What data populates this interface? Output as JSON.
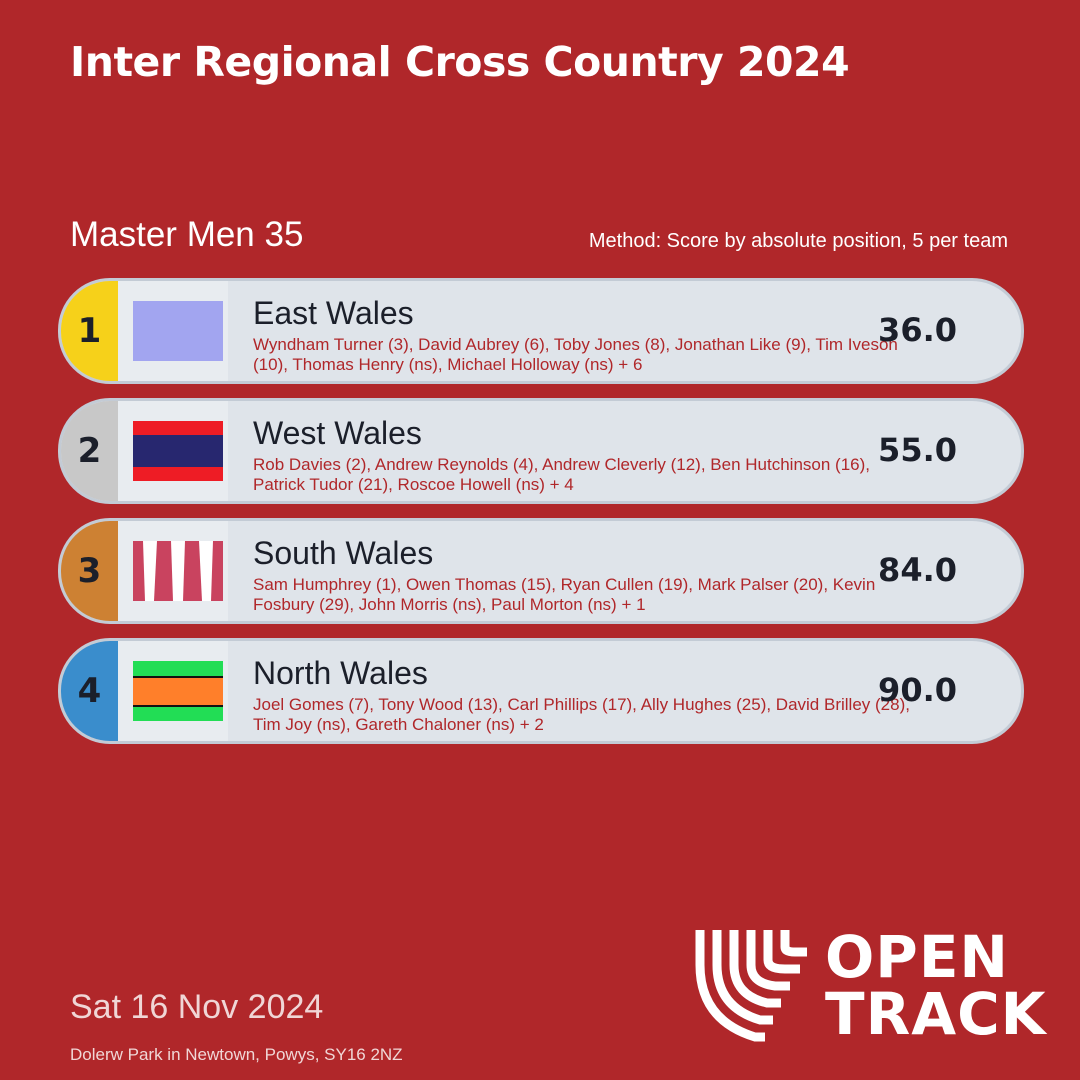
{
  "header": {
    "title": "Inter Regional Cross Country 2024"
  },
  "race": {
    "category": "Master Men 35",
    "method": "Method: Score by absolute position, 5 per team"
  },
  "teams": [
    {
      "rank": 1,
      "name": "East Wales",
      "members": "Wyndham Turner (3), David Aubrey (6), Toby Jones (8), Jonathan Like (9), Tim Iveson (10), Thomas Henry (ns), Michael Holloway (ns) + 6",
      "score": "36.0"
    },
    {
      "rank": 2,
      "name": "West Wales",
      "members": "Rob Davies (2), Andrew Reynolds (4), Andrew Cleverly (12), Ben Hutchinson (16), Patrick Tudor (21), Roscoe Howell (ns) + 4",
      "score": "55.0"
    },
    {
      "rank": 3,
      "name": "South Wales",
      "members": "Sam Humphrey (1), Owen Thomas (15), Ryan Cullen (19), Mark Palser (20), Kevin Fosbury (29), John Morris (ns), Paul Morton (ns) + 1",
      "score": "84.0"
    },
    {
      "rank": 4,
      "name": "North Wales",
      "members": "Joel Gomes (7), Tony Wood (13), Carl Phillips (17), Ally Hughes (25), David Brilley (28), Tim Joy (ns), Gareth Chaloner (ns) + 2",
      "score": "90.0"
    }
  ],
  "footer": {
    "date": "Sat 16 Nov 2024",
    "venue": "Dolerw Park in Newtown, Powys, SY16 2NZ"
  },
  "logo": {
    "line1": "OPEN",
    "line2": "TRACK"
  }
}
